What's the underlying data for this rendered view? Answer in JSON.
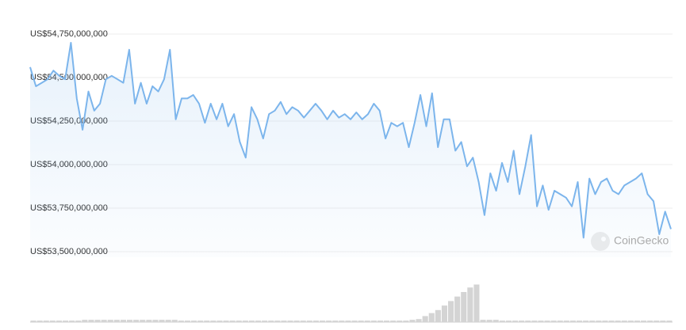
{
  "chart_data": [
    {
      "type": "line",
      "categories": [
        null,
        null,
        null,
        null,
        null,
        null,
        null,
        null,
        null,
        null,
        null,
        null,
        null,
        null,
        null,
        null,
        null,
        null,
        null,
        null,
        null,
        null,
        null,
        null,
        null,
        null,
        null,
        null,
        null,
        null,
        null,
        null,
        null,
        null,
        null,
        null,
        null,
        null,
        null,
        null,
        null,
        null,
        null,
        null,
        null,
        null,
        null,
        null,
        null,
        null,
        null,
        null,
        null,
        null,
        null,
        null,
        null,
        null,
        null,
        null,
        null,
        null,
        null,
        null,
        null,
        null,
        null,
        null,
        null,
        null,
        null,
        null,
        null,
        null,
        null,
        null,
        null,
        null,
        null,
        null,
        null,
        null,
        null,
        null,
        null,
        null,
        null,
        null,
        null,
        null,
        null,
        null,
        null,
        null,
        null,
        null,
        null,
        null,
        null,
        null,
        null,
        null,
        null,
        null,
        null,
        null,
        null,
        null,
        null,
        null,
        null
      ],
      "values": [
        54560000000,
        54450000000,
        54470000000,
        54490000000,
        54540000000,
        54510000000,
        54490000000,
        54700000000,
        54380000000,
        54200000000,
        54420000000,
        54310000000,
        54350000000,
        54490000000,
        54510000000,
        54490000000,
        54470000000,
        54660000000,
        54350000000,
        54470000000,
        54350000000,
        54450000000,
        54420000000,
        54490000000,
        54660000000,
        54260000000,
        54380000000,
        54380000000,
        54400000000,
        54350000000,
        54240000000,
        54350000000,
        54260000000,
        54350000000,
        54220000000,
        54290000000,
        54130000000,
        54040000000,
        54330000000,
        54260000000,
        54150000000,
        54290000000,
        54310000000,
        54360000000,
        54290000000,
        54330000000,
        54310000000,
        54270000000,
        54310000000,
        54350000000,
        54310000000,
        54260000000,
        54310000000,
        54270000000,
        54290000000,
        54260000000,
        54300000000,
        54260000000,
        54290000000,
        54350000000,
        54310000000,
        54150000000,
        54240000000,
        54220000000,
        54240000000,
        54100000000,
        54240000000,
        54400000000,
        54220000000,
        54410000000,
        54100000000,
        54260000000,
        54260000000,
        54080000000,
        54130000000,
        53990000000,
        54040000000,
        53900000000,
        53710000000,
        53950000000,
        53850000000,
        54010000000,
        53900000000,
        54080000000,
        53830000000,
        53990000000,
        54170000000,
        53760000000,
        53880000000,
        53740000000,
        53850000000,
        53830000000,
        53810000000,
        53760000000,
        53900000000,
        53580000000,
        53920000000,
        53830000000,
        53900000000,
        53920000000,
        53850000000,
        53830000000,
        53880000000,
        53900000000,
        53920000000,
        53950000000,
        53830000000,
        53790000000,
        53600000000,
        53730000000,
        53630000000
      ],
      "color": "#7cb5ec",
      "ylim": [
        53500000000,
        54750000000
      ],
      "yticks": [
        {
          "value": 53500000000,
          "label": "US$53,500,000,000"
        },
        {
          "value": 53750000000,
          "label": "US$53,750,000,000"
        },
        {
          "value": 54000000000,
          "label": "US$54,000,000,000"
        },
        {
          "value": 54250000000,
          "label": "US$54,250,000,000"
        },
        {
          "value": 54500000000,
          "label": "US$54,500,000,000"
        },
        {
          "value": 54750000000,
          "label": "US$54,750,000,000"
        }
      ],
      "grid": true,
      "watermark": "CoinGecko"
    },
    {
      "type": "bar",
      "values": [
        2,
        2,
        2,
        2,
        2,
        2,
        2,
        2,
        3,
        3,
        3,
        3,
        3,
        3,
        3,
        3,
        3,
        3,
        3,
        3,
        3,
        3,
        3,
        2,
        2,
        2,
        2,
        2,
        2,
        2,
        2,
        2,
        2,
        2,
        2,
        2,
        2,
        2,
        2,
        2,
        2,
        2,
        2,
        2,
        2,
        2,
        2,
        2,
        2,
        2,
        2,
        2,
        2,
        2,
        2,
        2,
        2,
        2,
        2,
        3,
        4,
        8,
        12,
        16,
        22,
        28,
        34,
        40,
        46,
        50,
        3,
        3,
        3,
        2,
        2,
        2,
        2,
        2,
        2,
        2,
        2,
        2,
        2,
        2,
        2,
        2,
        2,
        2,
        2,
        2,
        2,
        2,
        2,
        2,
        2,
        2,
        2,
        2,
        2,
        2
      ],
      "color": "#d4d4d4",
      "ylim": [
        0,
        60
      ]
    }
  ]
}
